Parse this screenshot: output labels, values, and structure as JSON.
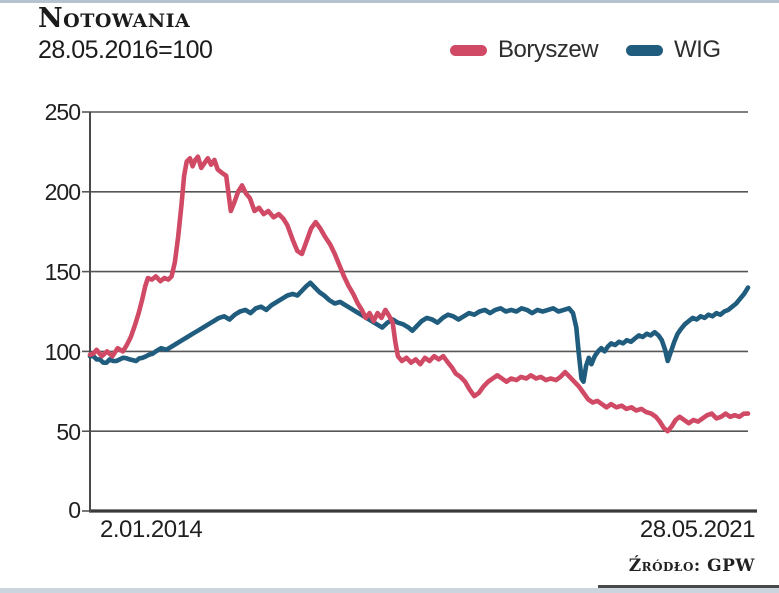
{
  "header": {
    "title": "Notowania",
    "subtitle": "28.05.2016=100"
  },
  "legend": [
    {
      "label": "Boryszew",
      "color": "#d04a66"
    },
    {
      "label": "WIG",
      "color": "#1f5c7d"
    }
  ],
  "source": "Źródło: GPW",
  "colors": {
    "boryszew_line": "#d04a66",
    "wig_line": "#1f5c7d",
    "gridline": "#565656",
    "axis": "#3a3a3a",
    "top_border": "#b5c2cf",
    "bottom_strip": "#ccd5dd"
  },
  "chart_data": {
    "type": "line",
    "title": "Notowania",
    "subtitle": "28.05.2016=100",
    "xlabel": "",
    "ylabel": "",
    "grid": true,
    "legend_position": "top-right",
    "x_axis": {
      "start_label": "2.01.2014",
      "end_label": "28.05.2021"
    },
    "y_axis": {
      "ticks": [
        0,
        50,
        100,
        150,
        200,
        250
      ],
      "range": [
        0,
        250
      ]
    },
    "x_range_note": "x values are fractions of the time span 2.01.2014 to 28.05.2021",
    "series": [
      {
        "name": "WIG",
        "color": "#1f5c7d",
        "points": [
          [
            0,
            97
          ],
          [
            0.01,
            95
          ],
          [
            0.02,
            93
          ],
          [
            0.03,
            95
          ],
          [
            0.04,
            94
          ],
          [
            0.05,
            96
          ],
          [
            0.06,
            95
          ],
          [
            0.07,
            94
          ],
          [
            0.08,
            96
          ],
          [
            0.09,
            98
          ],
          [
            0.1,
            100
          ],
          [
            0.108,
            102
          ],
          [
            0.116,
            101
          ],
          [
            0.124,
            103
          ],
          [
            0.132,
            105
          ],
          [
            0.14,
            107
          ],
          [
            0.148,
            109
          ],
          [
            0.156,
            111
          ],
          [
            0.164,
            113
          ],
          [
            0.172,
            115
          ],
          [
            0.18,
            117
          ],
          [
            0.188,
            119
          ],
          [
            0.196,
            121
          ],
          [
            0.204,
            122
          ],
          [
            0.212,
            120
          ],
          [
            0.22,
            123
          ],
          [
            0.228,
            125
          ],
          [
            0.236,
            126
          ],
          [
            0.244,
            124
          ],
          [
            0.252,
            127
          ],
          [
            0.26,
            128
          ],
          [
            0.268,
            126
          ],
          [
            0.276,
            129
          ],
          [
            0.284,
            131
          ],
          [
            0.292,
            133
          ],
          [
            0.3,
            135
          ],
          [
            0.308,
            136
          ],
          [
            0.315,
            135
          ],
          [
            0.322,
            138
          ],
          [
            0.329,
            141
          ],
          [
            0.335,
            143
          ],
          [
            0.342,
            140
          ],
          [
            0.349,
            137
          ],
          [
            0.356,
            135
          ],
          [
            0.364,
            132
          ],
          [
            0.372,
            130
          ],
          [
            0.38,
            131
          ],
          [
            0.388,
            129
          ],
          [
            0.396,
            127
          ],
          [
            0.404,
            125
          ],
          [
            0.412,
            123
          ],
          [
            0.42,
            121
          ],
          [
            0.428,
            119
          ],
          [
            0.436,
            117
          ],
          [
            0.444,
            115
          ],
          [
            0.452,
            118
          ],
          [
            0.46,
            120
          ],
          [
            0.468,
            118
          ],
          [
            0.476,
            117
          ],
          [
            0.484,
            115
          ],
          [
            0.49,
            113
          ],
          [
            0.497,
            116
          ],
          [
            0.504,
            119
          ],
          [
            0.512,
            121
          ],
          [
            0.52,
            120
          ],
          [
            0.528,
            118
          ],
          [
            0.536,
            121
          ],
          [
            0.544,
            123
          ],
          [
            0.552,
            122
          ],
          [
            0.56,
            120
          ],
          [
            0.568,
            122
          ],
          [
            0.576,
            124
          ],
          [
            0.584,
            123
          ],
          [
            0.592,
            125
          ],
          [
            0.6,
            126
          ],
          [
            0.608,
            124
          ],
          [
            0.616,
            126
          ],
          [
            0.624,
            127
          ],
          [
            0.632,
            125
          ],
          [
            0.64,
            126
          ],
          [
            0.648,
            125
          ],
          [
            0.656,
            127
          ],
          [
            0.664,
            126
          ],
          [
            0.672,
            124
          ],
          [
            0.68,
            126
          ],
          [
            0.688,
            125
          ],
          [
            0.696,
            126
          ],
          [
            0.704,
            127
          ],
          [
            0.712,
            125
          ],
          [
            0.72,
            126
          ],
          [
            0.728,
            127
          ],
          [
            0.734,
            124
          ],
          [
            0.739,
            115
          ],
          [
            0.743,
            98
          ],
          [
            0.747,
            83
          ],
          [
            0.75,
            81
          ],
          [
            0.754,
            91
          ],
          [
            0.758,
            96
          ],
          [
            0.762,
            92
          ],
          [
            0.767,
            97
          ],
          [
            0.772,
            100
          ],
          [
            0.777,
            102
          ],
          [
            0.782,
            100
          ],
          [
            0.787,
            103
          ],
          [
            0.792,
            105
          ],
          [
            0.798,
            104
          ],
          [
            0.804,
            106
          ],
          [
            0.81,
            105
          ],
          [
            0.816,
            107
          ],
          [
            0.822,
            106
          ],
          [
            0.828,
            108
          ],
          [
            0.834,
            110
          ],
          [
            0.84,
            109
          ],
          [
            0.846,
            111
          ],
          [
            0.852,
            110
          ],
          [
            0.858,
            112
          ],
          [
            0.864,
            110
          ],
          [
            0.869,
            107
          ],
          [
            0.874,
            101
          ],
          [
            0.878,
            94
          ],
          [
            0.883,
            100
          ],
          [
            0.888,
            106
          ],
          [
            0.893,
            111
          ],
          [
            0.898,
            114
          ],
          [
            0.904,
            117
          ],
          [
            0.91,
            119
          ],
          [
            0.916,
            121
          ],
          [
            0.922,
            120
          ],
          [
            0.928,
            122
          ],
          [
            0.934,
            121
          ],
          [
            0.94,
            123
          ],
          [
            0.946,
            122
          ],
          [
            0.952,
            124
          ],
          [
            0.958,
            123
          ],
          [
            0.964,
            125
          ],
          [
            0.97,
            126
          ],
          [
            0.976,
            128
          ],
          [
            0.982,
            130
          ],
          [
            0.988,
            133
          ],
          [
            0.994,
            136
          ],
          [
            1,
            140
          ]
        ]
      },
      {
        "name": "Boryszew",
        "color": "#d04a66",
        "points": [
          [
            0,
            98
          ],
          [
            0.01,
            101
          ],
          [
            0.018,
            97
          ],
          [
            0.026,
            100
          ],
          [
            0.034,
            97
          ],
          [
            0.042,
            102
          ],
          [
            0.05,
            100
          ],
          [
            0.056,
            104
          ],
          [
            0.062,
            109
          ],
          [
            0.068,
            116
          ],
          [
            0.074,
            124
          ],
          [
            0.079,
            132
          ],
          [
            0.084,
            141
          ],
          [
            0.088,
            146
          ],
          [
            0.094,
            145
          ],
          [
            0.1,
            147
          ],
          [
            0.107,
            144
          ],
          [
            0.113,
            146
          ],
          [
            0.119,
            145
          ],
          [
            0.124,
            147
          ],
          [
            0.129,
            156
          ],
          [
            0.134,
            172
          ],
          [
            0.139,
            192
          ],
          [
            0.143,
            210
          ],
          [
            0.147,
            219
          ],
          [
            0.152,
            221
          ],
          [
            0.156,
            216
          ],
          [
            0.16,
            220
          ],
          [
            0.164,
            222
          ],
          [
            0.169,
            215
          ],
          [
            0.174,
            218
          ],
          [
            0.179,
            221
          ],
          [
            0.184,
            217
          ],
          [
            0.189,
            220
          ],
          [
            0.194,
            214
          ],
          [
            0.2,
            212
          ],
          [
            0.207,
            210
          ],
          [
            0.214,
            188
          ],
          [
            0.219,
            193
          ],
          [
            0.225,
            200
          ],
          [
            0.231,
            204
          ],
          [
            0.237,
            199
          ],
          [
            0.243,
            196
          ],
          [
            0.25,
            188
          ],
          [
            0.257,
            190
          ],
          [
            0.264,
            186
          ],
          [
            0.271,
            188
          ],
          [
            0.279,
            184
          ],
          [
            0.287,
            186
          ],
          [
            0.294,
            183
          ],
          [
            0.3,
            179
          ],
          [
            0.308,
            170
          ],
          [
            0.315,
            163
          ],
          [
            0.322,
            161
          ],
          [
            0.329,
            169
          ],
          [
            0.336,
            177
          ],
          [
            0.343,
            181
          ],
          [
            0.35,
            177
          ],
          [
            0.357,
            172
          ],
          [
            0.365,
            167
          ],
          [
            0.372,
            161
          ],
          [
            0.379,
            154
          ],
          [
            0.386,
            147
          ],
          [
            0.393,
            141
          ],
          [
            0.4,
            136
          ],
          [
            0.407,
            130
          ],
          [
            0.413,
            126
          ],
          [
            0.419,
            121
          ],
          [
            0.425,
            124
          ],
          [
            0.431,
            119
          ],
          [
            0.437,
            124
          ],
          [
            0.443,
            121
          ],
          [
            0.449,
            126
          ],
          [
            0.455,
            122
          ],
          [
            0.46,
            118
          ],
          [
            0.464,
            106
          ],
          [
            0.468,
            97
          ],
          [
            0.474,
            94
          ],
          [
            0.481,
            96
          ],
          [
            0.488,
            93
          ],
          [
            0.495,
            95
          ],
          [
            0.502,
            92
          ],
          [
            0.509,
            96
          ],
          [
            0.516,
            94
          ],
          [
            0.523,
            97
          ],
          [
            0.53,
            95
          ],
          [
            0.537,
            97
          ],
          [
            0.544,
            93
          ],
          [
            0.55,
            90
          ],
          [
            0.556,
            86
          ],
          [
            0.563,
            84
          ],
          [
            0.57,
            81
          ],
          [
            0.577,
            76
          ],
          [
            0.584,
            72
          ],
          [
            0.591,
            74
          ],
          [
            0.598,
            78
          ],
          [
            0.605,
            81
          ],
          [
            0.612,
            83
          ],
          [
            0.619,
            85
          ],
          [
            0.626,
            83
          ],
          [
            0.633,
            81
          ],
          [
            0.64,
            83
          ],
          [
            0.648,
            82
          ],
          [
            0.655,
            84
          ],
          [
            0.663,
            83
          ],
          [
            0.67,
            85
          ],
          [
            0.678,
            83
          ],
          [
            0.685,
            84
          ],
          [
            0.693,
            82
          ],
          [
            0.7,
            83
          ],
          [
            0.708,
            82
          ],
          [
            0.715,
            84
          ],
          [
            0.722,
            87
          ],
          [
            0.729,
            84
          ],
          [
            0.736,
            81
          ],
          [
            0.743,
            78
          ],
          [
            0.75,
            74
          ],
          [
            0.757,
            70
          ],
          [
            0.764,
            68
          ],
          [
            0.771,
            69
          ],
          [
            0.778,
            67
          ],
          [
            0.785,
            65
          ],
          [
            0.792,
            67
          ],
          [
            0.8,
            65
          ],
          [
            0.808,
            66
          ],
          [
            0.815,
            64
          ],
          [
            0.823,
            65
          ],
          [
            0.83,
            63
          ],
          [
            0.838,
            64
          ],
          [
            0.845,
            62
          ],
          [
            0.853,
            61
          ],
          [
            0.86,
            59
          ],
          [
            0.866,
            56
          ],
          [
            0.872,
            52
          ],
          [
            0.878,
            50
          ],
          [
            0.884,
            53
          ],
          [
            0.89,
            57
          ],
          [
            0.896,
            59
          ],
          [
            0.903,
            57
          ],
          [
            0.91,
            55
          ],
          [
            0.917,
            57
          ],
          [
            0.924,
            56
          ],
          [
            0.931,
            58
          ],
          [
            0.938,
            60
          ],
          [
            0.945,
            61
          ],
          [
            0.952,
            58
          ],
          [
            0.959,
            59
          ],
          [
            0.966,
            61
          ],
          [
            0.973,
            59
          ],
          [
            0.98,
            60
          ],
          [
            0.987,
            59
          ],
          [
            1,
            61
          ]
        ]
      }
    ]
  }
}
